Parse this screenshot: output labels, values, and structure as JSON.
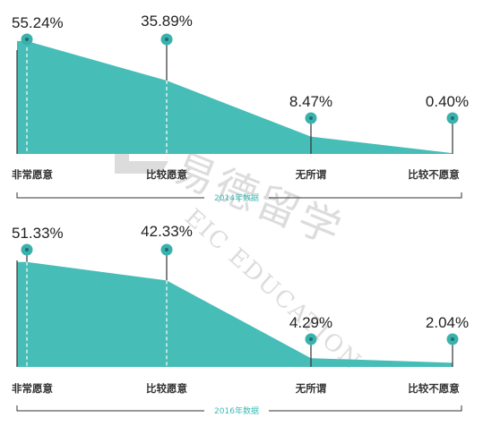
{
  "chart_data": [
    {
      "type": "area",
      "categories": [
        "非常愿意",
        "比较愿意",
        "无所谓",
        "比较不愿意"
      ],
      "values": [
        55.24,
        35.89,
        8.47,
        0.4
      ],
      "value_labels": [
        "55.24%",
        "35.89%",
        "8.47%",
        "0.40%"
      ],
      "caption": "2014年数据",
      "color": "#46bdb7"
    },
    {
      "type": "area",
      "categories": [
        "非常愿意",
        "比较愿意",
        "无所谓",
        "比较不愿意"
      ],
      "values": [
        51.33,
        42.33,
        4.29,
        2.04
      ],
      "value_labels": [
        "51.33%",
        "42.33%",
        "4.29%",
        "2.04%"
      ],
      "caption": "2016年数据",
      "color": "#46bdb7"
    }
  ],
  "watermark": {
    "chinese": "易德留学",
    "english": "EIC EDUCATION"
  },
  "colors": {
    "area": "#46bdb7",
    "marker": "#3bb1ad",
    "line": "#333333",
    "caption": "#3bbab6"
  }
}
